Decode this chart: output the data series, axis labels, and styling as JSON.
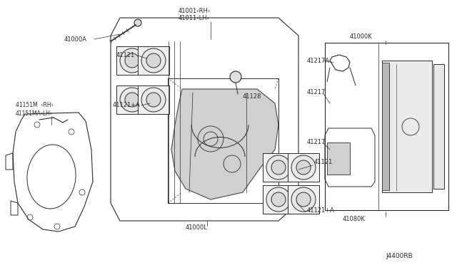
{
  "bg_color": "#ffffff",
  "line_color": "#2a2a2a",
  "diagram_id": "J4400RB",
  "fig_w": 6.4,
  "fig_h": 3.72,
  "dpi": 100,
  "labels": {
    "bolt": "41000A",
    "caliper_rh": "41001‹RH›",
    "caliper_lh": "41011‹LH›",
    "piston_ul": "41121",
    "seal_ul": "41121+A",
    "bleeder": "41128",
    "piston_br": "41121",
    "seal_br": "41121+A",
    "caliper_body": "41000L",
    "pad_kit": "41000K",
    "pad_assy": "41080K",
    "shim_a": "41217A",
    "shim1": "41217",
    "shim2": "41217",
    "dust_rh": "41151M  ‹RH›",
    "dust_lh": "41151MA‹LH›",
    "diagram_id": "J4400RB"
  }
}
